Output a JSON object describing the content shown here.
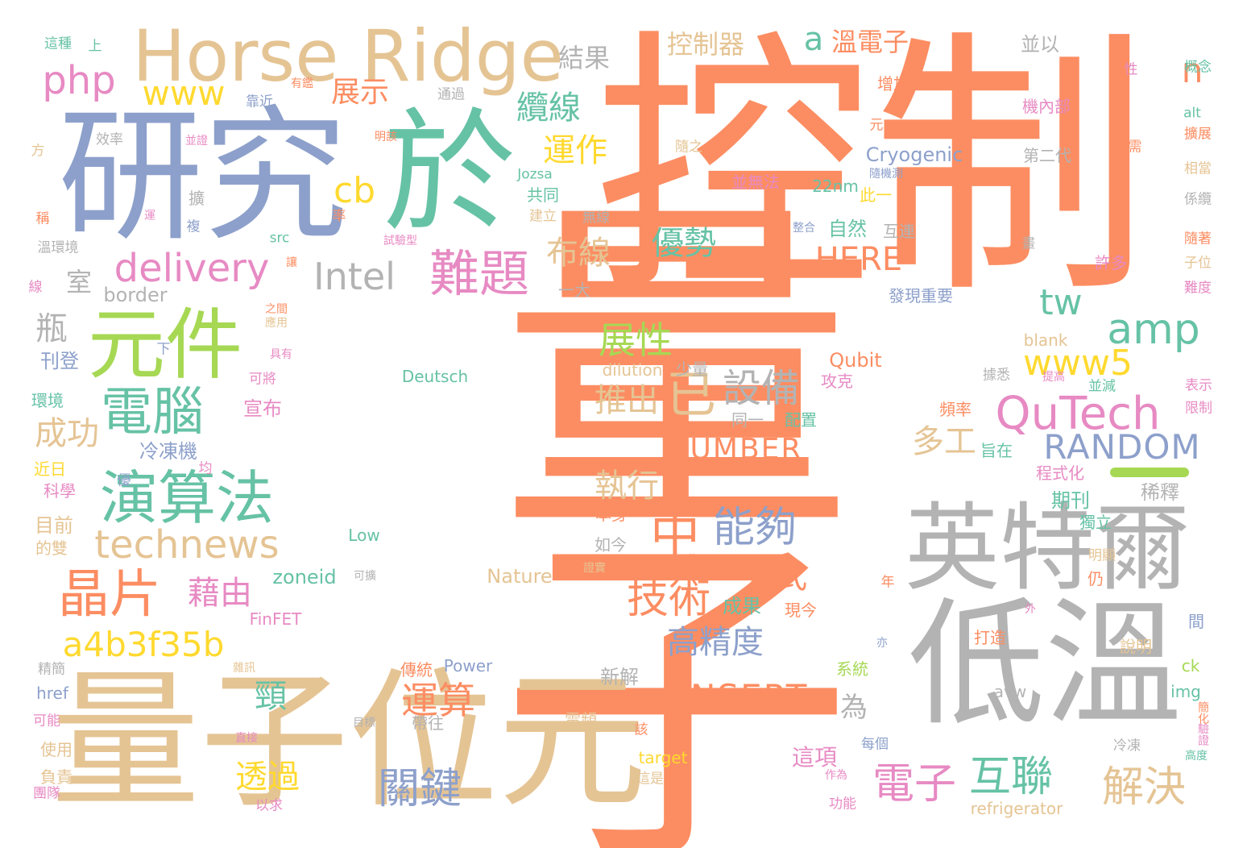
{
  "palette": {
    "orange": "#fc8d62",
    "blue": "#8da0cb",
    "green": "#66c2a5",
    "tan": "#e5c494",
    "gray": "#b3b3b3",
    "pink": "#e78ac3",
    "lime": "#a6d854",
    "yellow": "#ffd92f"
  },
  "words": [
    {
      "text": "量子",
      "color": "orange"
    },
    {
      "text": "控制",
      "color": "orange"
    },
    {
      "text": "研究",
      "color": "blue"
    },
    {
      "text": "於",
      "color": "green"
    },
    {
      "text": "Horse Ridge",
      "color": "tan"
    },
    {
      "text": "量子位元",
      "color": "tan"
    },
    {
      "text": "低溫",
      "color": "gray"
    },
    {
      "text": "英特爾",
      "color": "gray"
    },
    {
      "text": "元件",
      "color": "lime"
    },
    {
      "text": "演算法",
      "color": "green"
    },
    {
      "text": "電腦",
      "color": "green"
    },
    {
      "text": "晶片",
      "color": "orange"
    },
    {
      "text": "technews",
      "color": "tan"
    },
    {
      "text": "a4b3f35b",
      "color": "yellow"
    },
    {
      "text": "delivery",
      "color": "pink"
    },
    {
      "text": "php",
      "color": "pink"
    },
    {
      "text": "www",
      "color": "yellow"
    },
    {
      "text": "難題",
      "color": "pink"
    },
    {
      "text": "Intel",
      "color": "gray"
    },
    {
      "text": "展示",
      "color": "orange"
    },
    {
      "text": "纜線",
      "color": "green"
    },
    {
      "text": "運作",
      "color": "yellow"
    },
    {
      "text": "cb",
      "color": "yellow"
    },
    {
      "text": "布線",
      "color": "tan"
    },
    {
      "text": "優勢",
      "color": "green"
    },
    {
      "text": "已",
      "color": "tan"
    },
    {
      "text": "展性",
      "color": "lime"
    },
    {
      "text": "設備",
      "color": "gray"
    },
    {
      "text": "推出",
      "color": "tan"
    },
    {
      "text": "NUMBER",
      "color": "orange"
    },
    {
      "text": "執行",
      "color": "tan"
    },
    {
      "text": "中",
      "color": "orange"
    },
    {
      "text": "能夠",
      "color": "blue"
    },
    {
      "text": "技術",
      "color": "orange"
    },
    {
      "text": "方式",
      "color": "orange"
    },
    {
      "text": "藉由",
      "color": "pink"
    },
    {
      "text": "高精度",
      "color": "blue"
    },
    {
      "text": "INSERT",
      "color": "orange"
    },
    {
      "text": "運算",
      "color": "orange"
    },
    {
      "text": "關鍵",
      "color": "blue"
    },
    {
      "text": "透過",
      "color": "yellow"
    },
    {
      "text": "頸",
      "color": "green"
    },
    {
      "text": "電子",
      "color": "pink"
    },
    {
      "text": "互聯",
      "color": "green"
    },
    {
      "text": "解決",
      "color": "tan"
    },
    {
      "text": "QuTech",
      "color": "pink"
    },
    {
      "text": "RANDOM",
      "color": "blue"
    },
    {
      "text": "www5",
      "color": "yellow"
    },
    {
      "text": "amp",
      "color": "green"
    },
    {
      "text": "tw",
      "color": "green"
    },
    {
      "text": "多工",
      "color": "tan"
    },
    {
      "text": "HERE",
      "color": "orange"
    },
    {
      "text": "a",
      "color": "green"
    },
    {
      "text": "溫電子",
      "color": "orange"
    },
    {
      "text": "n",
      "color": "orange"
    },
    {
      "text": "控制器",
      "color": "tan"
    },
    {
      "text": "結果",
      "color": "gray"
    },
    {
      "text": "成功",
      "color": "tan"
    },
    {
      "text": "瓶",
      "color": "gray"
    },
    {
      "text": "室",
      "color": "gray"
    },
    {
      "text": "border",
      "color": "gray"
    },
    {
      "text": "為",
      "color": "gray"
    },
    {
      "text": "這項",
      "color": "pink"
    },
    {
      "text": "Cryogenic",
      "color": "blue"
    },
    {
      "text": "並以",
      "color": "gray"
    },
    {
      "text": "22nm",
      "color": "green"
    },
    {
      "text": "自然",
      "color": "green"
    },
    {
      "text": "互連",
      "color": "gray"
    },
    {
      "text": "並無法",
      "color": "pink"
    },
    {
      "text": "此一",
      "color": "yellow"
    },
    {
      "text": "發現重要",
      "color": "blue"
    },
    {
      "text": "第二代",
      "color": "gray"
    },
    {
      "text": "增加",
      "color": "orange"
    },
    {
      "text": "機內部",
      "color": "pink"
    },
    {
      "text": "許多",
      "color": "pink"
    },
    {
      "text": "Qubit",
      "color": "orange"
    },
    {
      "text": "Deutsch",
      "color": "green"
    },
    {
      "text": "dilution",
      "color": "tan"
    },
    {
      "text": "少量",
      "color": "gray"
    },
    {
      "text": "blank",
      "color": "tan"
    },
    {
      "text": "攻克",
      "color": "pink"
    },
    {
      "text": "配置",
      "color": "green"
    },
    {
      "text": "同一",
      "color": "gray"
    },
    {
      "text": "宣布",
      "color": "pink"
    },
    {
      "text": "冷凍機",
      "color": "blue"
    },
    {
      "text": "刊登",
      "color": "blue"
    },
    {
      "text": "環境",
      "color": "green"
    },
    {
      "text": "近日",
      "color": "yellow"
    },
    {
      "text": "科學",
      "color": "pink"
    },
    {
      "text": "目前",
      "color": "tan"
    },
    {
      "text": "的雙",
      "color": "tan"
    },
    {
      "text": "Low",
      "color": "green"
    },
    {
      "text": "Nature",
      "color": "tan"
    },
    {
      "text": "zoneid",
      "color": "green"
    },
    {
      "text": "如今",
      "color": "gray"
    },
    {
      "text": "本身",
      "color": "orange"
    },
    {
      "text": "期刊",
      "color": "green"
    },
    {
      "text": "稀釋",
      "color": "gray"
    },
    {
      "text": "獨立",
      "color": "green"
    },
    {
      "text": "程式化",
      "color": "pink"
    },
    {
      "text": "旨在",
      "color": "green"
    },
    {
      "text": "頻率",
      "color": "orange"
    },
    {
      "text": "成果",
      "color": "green"
    },
    {
      "text": "現今",
      "color": "orange"
    },
    {
      "text": "FinFET",
      "color": "pink"
    },
    {
      "text": "Power",
      "color": "blue"
    },
    {
      "text": "傳統",
      "color": "orange"
    },
    {
      "text": "新解",
      "color": "gray"
    },
    {
      "text": "帶往",
      "color": "gray"
    },
    {
      "text": "電頻",
      "color": "tan"
    },
    {
      "text": "target",
      "color": "yellow"
    },
    {
      "text": "這是",
      "color": "tan"
    },
    {
      "text": "refrigerator",
      "color": "tan"
    },
    {
      "text": "avw",
      "color": "gray"
    },
    {
      "text": "系統",
      "color": "lime"
    },
    {
      "text": "每個",
      "color": "blue"
    },
    {
      "text": "功能",
      "color": "pink"
    },
    {
      "text": "img",
      "color": "green"
    },
    {
      "text": "ck",
      "color": "lime"
    },
    {
      "text": "說明",
      "color": "tan"
    },
    {
      "text": "打造",
      "color": "orange"
    },
    {
      "text": "明顯",
      "color": "tan"
    },
    {
      "text": "仍",
      "color": "orange"
    },
    {
      "text": "間",
      "color": "blue"
    },
    {
      "text": "精簡",
      "color": "gray"
    },
    {
      "text": "href",
      "color": "blue"
    },
    {
      "text": "可能",
      "color": "pink"
    },
    {
      "text": "使用",
      "color": "tan"
    },
    {
      "text": "負責",
      "color": "tan"
    },
    {
      "text": "團隊",
      "color": "pink"
    },
    {
      "text": "以求",
      "color": "pink"
    },
    {
      "text": "目標",
      "color": "gray"
    },
    {
      "text": "直接",
      "color": "pink"
    },
    {
      "text": "該",
      "color": "orange"
    },
    {
      "text": "冷凍",
      "color": "gray"
    },
    {
      "text": "驗證",
      "color": "pink"
    },
    {
      "text": "高度",
      "color": "green"
    },
    {
      "text": "簡化",
      "color": "orange"
    },
    {
      "text": "表示",
      "color": "pink"
    },
    {
      "text": "限制",
      "color": "pink"
    },
    {
      "text": "並減",
      "color": "green"
    },
    {
      "text": "提高",
      "color": "pink"
    },
    {
      "text": "據悉",
      "color": "gray"
    },
    {
      "text": "子位",
      "color": "tan"
    },
    {
      "text": "隨著",
      "color": "orange"
    },
    {
      "text": "難度",
      "color": "pink"
    },
    {
      "text": "係纜",
      "color": "gray"
    },
    {
      "text": "相當",
      "color": "tan"
    },
    {
      "text": "擴展",
      "color": "orange"
    },
    {
      "text": "需",
      "color": "orange"
    },
    {
      "text": "alt",
      "color": "green"
    },
    {
      "text": "概念",
      "color": "green"
    },
    {
      "text": "性",
      "color": "pink"
    },
    {
      "text": "這種",
      "color": "green"
    },
    {
      "text": "上",
      "color": "green"
    },
    {
      "text": "有鑑",
      "color": "orange"
    },
    {
      "text": "靠近",
      "color": "blue"
    },
    {
      "text": "通過",
      "color": "gray"
    },
    {
      "text": "方",
      "color": "tan"
    },
    {
      "text": "效率",
      "color": "gray"
    },
    {
      "text": "並證",
      "color": "pink"
    },
    {
      "text": "明該",
      "color": "orange"
    },
    {
      "text": "隨之",
      "color": "tan"
    },
    {
      "text": "元",
      "color": "orange"
    },
    {
      "text": "Jozsa",
      "color": "green"
    },
    {
      "text": "共同",
      "color": "green"
    },
    {
      "text": "建立",
      "color": "tan"
    },
    {
      "text": "無線",
      "color": "gray"
    },
    {
      "text": "src",
      "color": "green"
    },
    {
      "text": "稱",
      "color": "orange"
    },
    {
      "text": "運",
      "color": "pink"
    },
    {
      "text": "擴",
      "color": "gray"
    },
    {
      "text": "複",
      "color": "blue"
    },
    {
      "text": "率",
      "color": "orange"
    },
    {
      "text": "溫環境",
      "color": "gray"
    },
    {
      "text": "讓",
      "color": "orange"
    },
    {
      "text": "線",
      "color": "pink"
    },
    {
      "text": "一大",
      "color": "gray"
    },
    {
      "text": "款",
      "color": "orange"
    },
    {
      "text": "隨機測",
      "color": "blue"
    },
    {
      "text": "整合",
      "color": "blue"
    },
    {
      "text": "試驗型",
      "color": "pink"
    },
    {
      "text": "畫",
      "color": "gray"
    },
    {
      "text": "之間",
      "color": "orange"
    },
    {
      "text": "應用",
      "color": "tan"
    },
    {
      "text": "具有",
      "color": "pink"
    },
    {
      "text": "下",
      "color": "blue"
    },
    {
      "text": "可將",
      "color": "pink"
    },
    {
      "text": "均",
      "color": "pink"
    },
    {
      "text": "優",
      "color": "blue"
    },
    {
      "text": "此項",
      "color": "orange"
    },
    {
      "text": "可擴",
      "color": "gray"
    },
    {
      "text": "證實",
      "color": "tan"
    },
    {
      "text": "年",
      "color": "orange"
    },
    {
      "text": "外",
      "color": "pink"
    },
    {
      "text": "亦",
      "color": "blue"
    },
    {
      "text": "雜訊",
      "color": "tan"
    },
    {
      "text": "作為",
      "color": "pink"
    }
  ]
}
